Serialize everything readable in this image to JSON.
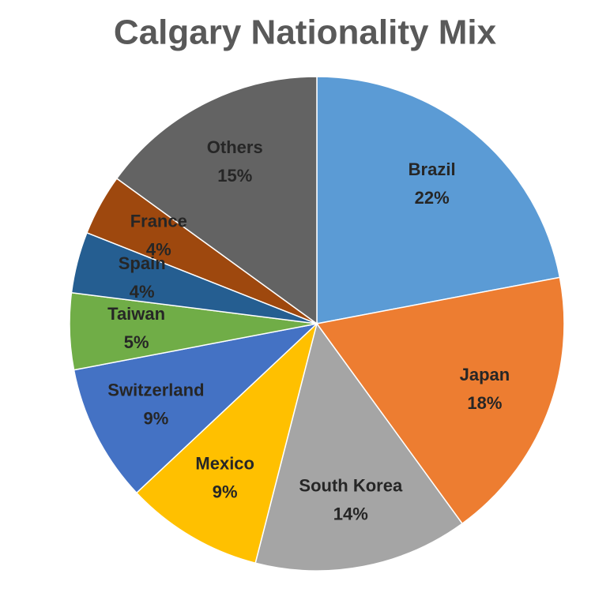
{
  "chart_data": {
    "type": "pie",
    "title": "Calgary Nationality Mix",
    "categories": [
      "Brazil",
      "Japan",
      "South Korea",
      "Mexico",
      "Switzerland",
      "Taiwan",
      "Spain",
      "France",
      "Others"
    ],
    "values": [
      22,
      18,
      14,
      9,
      9,
      5,
      4,
      4,
      15
    ],
    "value_labels": [
      "22%",
      "18%",
      "14%",
      "9%",
      "9%",
      "5%",
      "4%",
      "4%",
      "15%"
    ],
    "colors": [
      "#5b9bd5",
      "#ed7d31",
      "#a5a5a5",
      "#ffc000",
      "#4472c4",
      "#70ad47",
      "#255e91",
      "#9e480e",
      "#636363"
    ]
  }
}
